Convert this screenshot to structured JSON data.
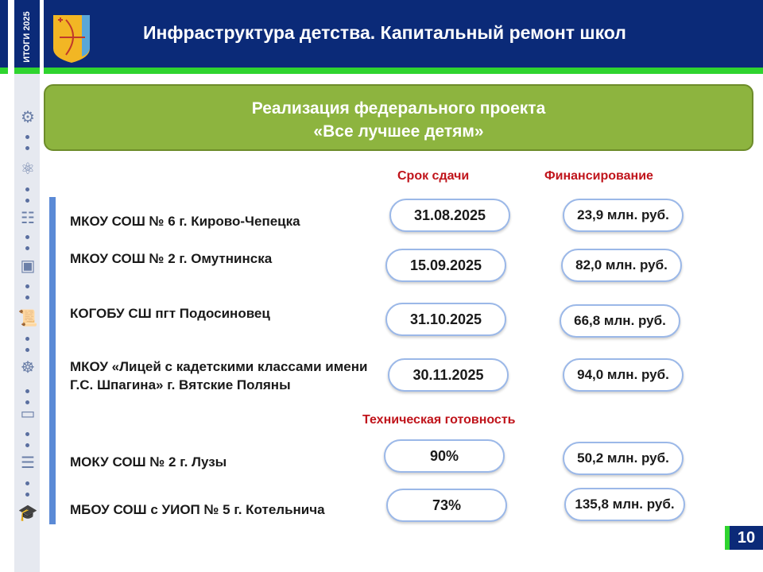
{
  "header": {
    "badge": "ИТОГИ 2025",
    "title": "Инфраструктура детства. Капитальный ремонт школ"
  },
  "banner": {
    "line1": "Реализация федерального проекта",
    "line2": "«Все лучшее детям»"
  },
  "columns": {
    "deadline": "Срок сдачи",
    "funding": "Финансирование",
    "readiness": "Техническая готовность"
  },
  "schools": [
    {
      "name": "МКОУ СОШ № 6 г. Кирово-Чепецка",
      "deadline": "31.08.2025",
      "funding": "23,9 млн. руб."
    },
    {
      "name": "МКОУ СОШ № 2 г. Омутнинска",
      "deadline": "15.09.2025",
      "funding": "82,0 млн. руб."
    },
    {
      "name": "КОГОБУ СШ пгт Подосиновец",
      "deadline": "31.10.2025",
      "funding": "66,8 млн. руб."
    },
    {
      "name": "МКОУ «Лицей с кадетскими классами имени Г.С. Шпагина» г. Вятские Поляны",
      "deadline": "30.11.2025",
      "funding": "94,0 млн. руб."
    }
  ],
  "in_progress": [
    {
      "name": "МОКУ СОШ № 2 г. Лузы",
      "readiness": "90%",
      "funding": "50,2 млн. руб."
    },
    {
      "name": "МБОУ СОШ с УИОП № 5 г. Котельнича",
      "readiness": "73%",
      "funding": "135,8 млн. руб."
    }
  ],
  "page_number": "10",
  "colors": {
    "header": "#0b2a78",
    "accent_green": "#2fd42f",
    "banner": "#8db43f",
    "heading_red": "#c0141b",
    "pill_border": "#9bb8e8"
  }
}
